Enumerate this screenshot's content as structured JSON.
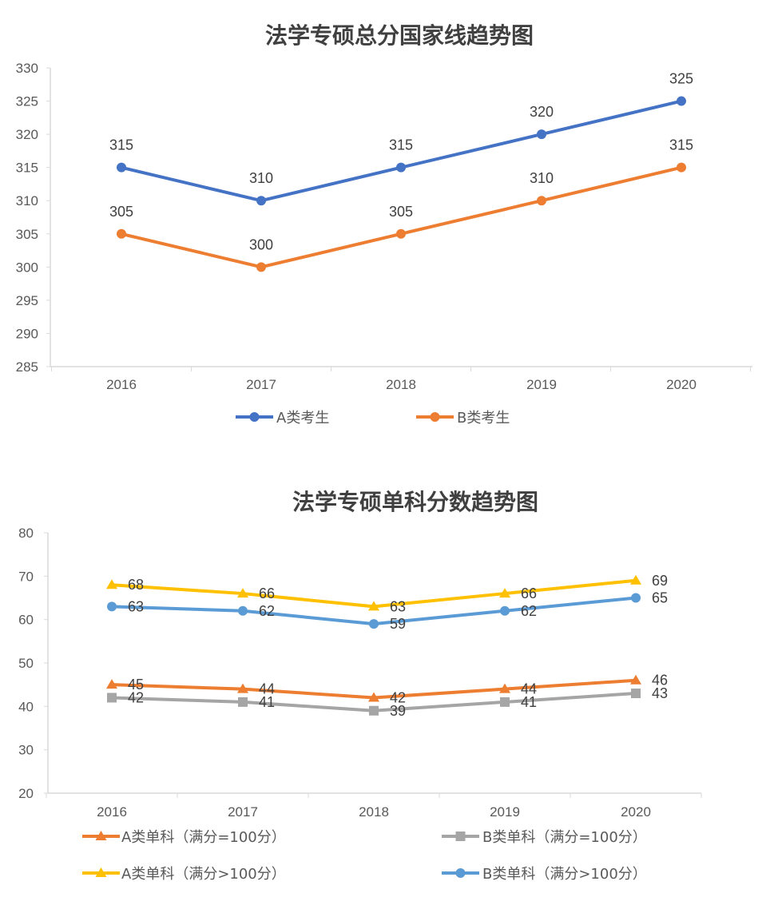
{
  "chart_data": [
    {
      "type": "line",
      "title": "法学专硕总分国家线趋势图",
      "categories": [
        "2016",
        "2017",
        "2018",
        "2019",
        "2020"
      ],
      "ylim": [
        285,
        330
      ],
      "yticks": [
        285,
        290,
        295,
        300,
        305,
        310,
        315,
        320,
        325,
        330
      ],
      "grid": false,
      "legend": "bottom",
      "data_labels": "above",
      "series": [
        {
          "name": "A类考生",
          "values": [
            315,
            310,
            315,
            320,
            325
          ],
          "color": "#4472C4",
          "marker": "circle"
        },
        {
          "name": "B类考生",
          "values": [
            305,
            300,
            305,
            310,
            315
          ],
          "color": "#ED7D31",
          "marker": "circle"
        }
      ]
    },
    {
      "type": "line",
      "title": "法学专硕单科分数趋势图",
      "categories": [
        "2016",
        "2017",
        "2018",
        "2019",
        "2020"
      ],
      "ylim": [
        20,
        80
      ],
      "yticks": [
        20,
        30,
        40,
        50,
        60,
        70,
        80
      ],
      "grid": false,
      "legend": "bottom",
      "data_labels": "right",
      "series": [
        {
          "name": "A类单科（满分=100分）",
          "values": [
            45,
            44,
            42,
            44,
            46
          ],
          "color": "#ED7D31",
          "marker": "triangle"
        },
        {
          "name": "B类单科（满分=100分）",
          "values": [
            42,
            41,
            39,
            41,
            43
          ],
          "color": "#A5A5A5",
          "marker": "square"
        },
        {
          "name": "A类单科（满分>100分）",
          "values": [
            68,
            66,
            63,
            66,
            69
          ],
          "color": "#FFC000",
          "marker": "triangle"
        },
        {
          "name": "B类单科（满分>100分）",
          "values": [
            63,
            62,
            59,
            62,
            65
          ],
          "color": "#5B9BD5",
          "marker": "circle"
        }
      ]
    }
  ]
}
